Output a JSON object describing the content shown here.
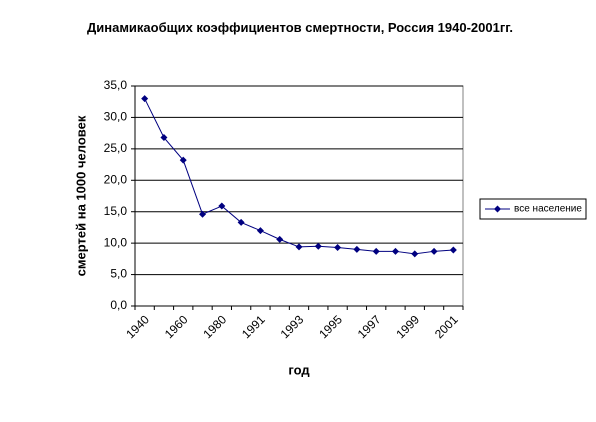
{
  "chart_data": {
    "type": "line",
    "title": "Динамикаобщих коэффициентов смертности, Россия 1940-2001гг.",
    "x_label": "год",
    "y_label": "смертей на 1000 человек",
    "categories": [
      "1940",
      null,
      "1960",
      null,
      "1980",
      null,
      "1991",
      null,
      "1993",
      null,
      "1995",
      null,
      "1997",
      null,
      "1999",
      null,
      "2001"
    ],
    "series": [
      {
        "name": "все население",
        "color": "#000080",
        "values": [
          33.0,
          26.8,
          23.2,
          14.6,
          15.9,
          13.3,
          12.0,
          10.6,
          9.4,
          9.5,
          9.3,
          9.0,
          8.7,
          8.7,
          8.3,
          8.7,
          8.9
        ]
      }
    ],
    "ylim": [
      0,
      35
    ],
    "yticks": [
      {
        "value": 0,
        "label": "0,0"
      },
      {
        "value": 5,
        "label": "5,0"
      },
      {
        "value": 10,
        "label": "10,0"
      },
      {
        "value": 15,
        "label": "15,0"
      },
      {
        "value": 20,
        "label": "20,0"
      },
      {
        "value": 25,
        "label": "25,0"
      },
      {
        "value": 30,
        "label": "30,0"
      },
      {
        "value": 35,
        "label": "35,0"
      }
    ],
    "grid": true,
    "legend": "right"
  }
}
